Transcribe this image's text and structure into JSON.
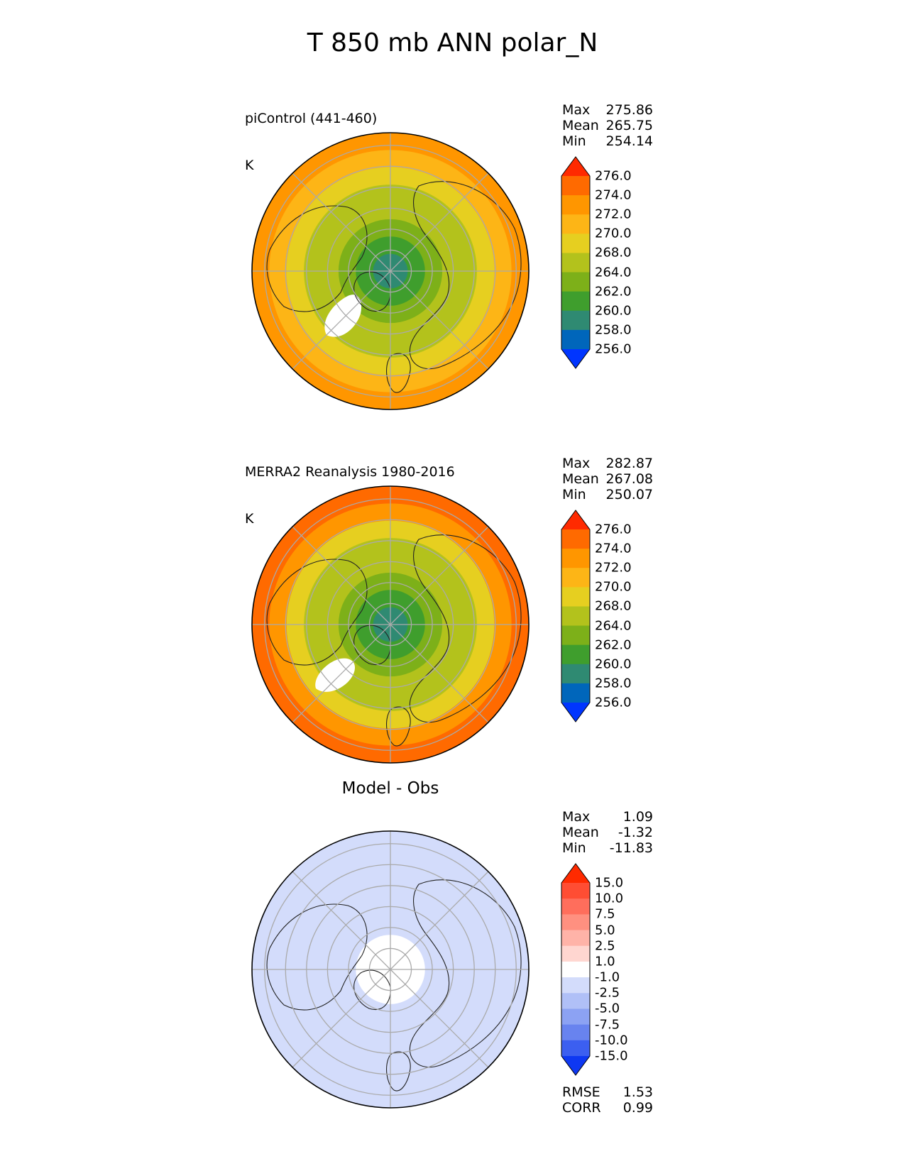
{
  "figure": {
    "title": "T 850 mb ANN polar_N"
  },
  "chart_data": [
    {
      "type": "heatmap",
      "projection": "north-polar-stereographic",
      "title": "piControl (441-460)",
      "units": "K",
      "stats": {
        "max": "275.86",
        "mean": "265.75",
        "min": "254.14"
      },
      "stat_labels": {
        "max": "Max",
        "mean": "Mean",
        "min": "Min"
      },
      "colorbar": {
        "extend": "both",
        "ticks": [
          "276.0",
          "274.0",
          "272.0",
          "270.0",
          "268.0",
          "264.0",
          "262.0",
          "260.0",
          "258.0",
          "256.0"
        ],
        "colors": [
          "#ff2a00",
          "#ff6a00",
          "#ff9600",
          "#fdb516",
          "#e6cf20",
          "#b3c21c",
          "#7db019",
          "#3f9e2d",
          "#2f8a72",
          "#0066bb",
          "#0035ff"
        ]
      },
      "field": {
        "polar_value": 258.5,
        "ring_values": [
          259.5,
          261.5,
          263.5,
          265.5,
          267.5,
          269.5,
          271.5,
          273.5
        ],
        "land_mask": "white"
      }
    },
    {
      "type": "heatmap",
      "projection": "north-polar-stereographic",
      "title": "MERRA2 Reanalysis 1980-2016",
      "units": "K",
      "stats": {
        "max": "282.87",
        "mean": "267.08",
        "min": "250.07"
      },
      "stat_labels": {
        "max": "Max",
        "mean": "Mean",
        "min": "Min"
      },
      "colorbar": {
        "extend": "both",
        "ticks": [
          "276.0",
          "274.0",
          "272.0",
          "270.0",
          "268.0",
          "264.0",
          "262.0",
          "260.0",
          "258.0",
          "256.0"
        ],
        "colors": [
          "#ff2a00",
          "#ff6a00",
          "#ff9600",
          "#fdb516",
          "#e6cf20",
          "#b3c21c",
          "#7db019",
          "#3f9e2d",
          "#2f8a72",
          "#0066bb",
          "#0035ff"
        ]
      },
      "field": {
        "polar_value": 258.5,
        "ring_values": [
          259.5,
          261.5,
          263.5,
          265.5,
          267.5,
          269.5,
          272.5,
          275.5
        ]
      }
    },
    {
      "type": "heatmap",
      "projection": "north-polar-stereographic",
      "title": "Model - Obs",
      "stats": {
        "max": "1.09",
        "mean": "-1.32",
        "min": "-11.83"
      },
      "stat_labels": {
        "max": "Max",
        "mean": "Mean",
        "min": "Min"
      },
      "metrics": {
        "rmse_label": "RMSE",
        "rmse": "1.53",
        "corr_label": "CORR",
        "corr": "0.99"
      },
      "colorbar": {
        "extend": "both",
        "ticks": [
          "15.0",
          "10.0",
          "7.5",
          "5.0",
          "2.5",
          "1.0",
          "-1.0",
          "-2.5",
          "-5.0",
          "-7.5",
          "-10.0",
          "-15.0"
        ],
        "colors": [
          "#ff2a00",
          "#ff4d33",
          "#ff6e5c",
          "#ff9080",
          "#ffb3a8",
          "#ffd6d0",
          "#ffffff",
          "#d3dcfb",
          "#b0c0f7",
          "#8ca2f3",
          "#6883ef",
          "#3c5ff0",
          "#0e38f2"
        ]
      },
      "field": {
        "polar_value": 0.0,
        "ring_values": [
          0.0,
          -0.5,
          -1.5,
          -1.5,
          -1.5,
          -1.5,
          -1.5,
          -1.5
        ]
      }
    }
  ]
}
